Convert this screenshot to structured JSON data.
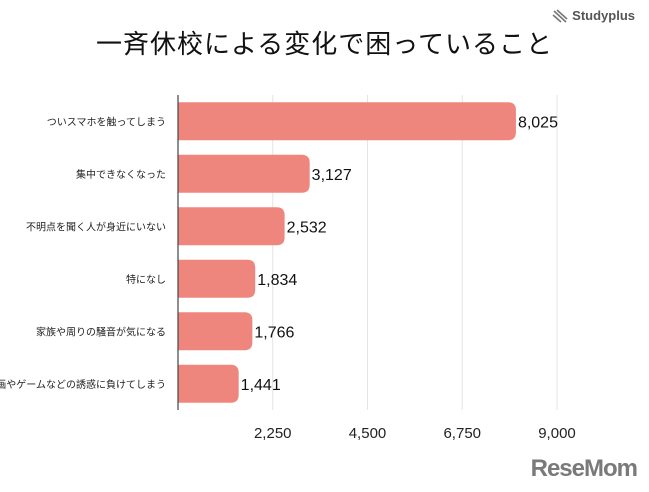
{
  "chart_data": {
    "type": "bar",
    "orientation": "horizontal",
    "title": "一斉休校による変化で困っていること",
    "categories": [
      "ついスマホを触ってしまう",
      "集中できなくなった",
      "不明点を聞く人が身近にいない",
      "特になし",
      "家族や周りの騒音が気になる",
      "漫画やゲームなどの誘惑に負けてしまう"
    ],
    "values": [
      8025,
      3127,
      2532,
      1834,
      1766,
      1441
    ],
    "value_labels": [
      "8,025",
      "3,127",
      "2,532",
      "1,834",
      "1,766",
      "1,441"
    ],
    "xlim": [
      0,
      9000
    ],
    "xticks": [
      2250,
      4500,
      6750,
      9000
    ],
    "xtick_labels": [
      "2,250",
      "4,500",
      "6,750",
      "9,000"
    ],
    "grid": "vertical",
    "bar_color": "#ef867d"
  },
  "logos": {
    "top": "Studyplus",
    "bottom": "ReseMom"
  }
}
